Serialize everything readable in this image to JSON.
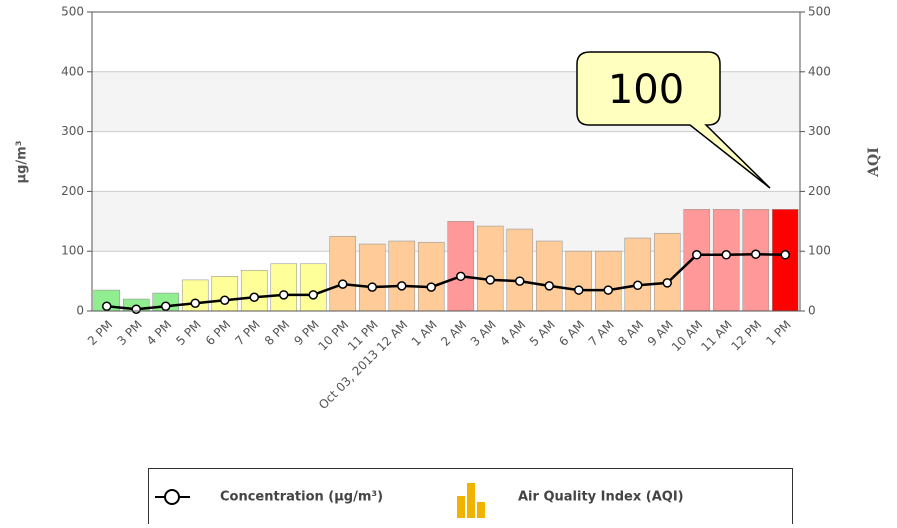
{
  "chart_data": {
    "type": "bar_line",
    "categories": [
      "2 PM",
      "3 PM",
      "4 PM",
      "5 PM",
      "6 PM",
      "7 PM",
      "8 PM",
      "9 PM",
      "10 PM",
      "11 PM",
      "Oct 03, 2013 12 AM",
      "1 AM",
      "2 AM",
      "3 AM",
      "4 AM",
      "5 AM",
      "6 AM",
      "7 AM",
      "8 AM",
      "9 AM",
      "10 AM",
      "11 AM",
      "12 PM",
      "1 PM"
    ],
    "ylabel": "µg/m³",
    "y2label": "AQI",
    "ylim": [
      0,
      500
    ],
    "yticks": [
      0,
      100,
      200,
      300,
      400,
      500
    ],
    "y2lim": [
      0,
      500
    ],
    "y2ticks": [
      0,
      100,
      200,
      300,
      400,
      500
    ],
    "grid": true,
    "series": [
      {
        "name": "Concentration (µg/m³)",
        "type": "line",
        "color": "#000000",
        "values": [
          8,
          3,
          8,
          13,
          18,
          23,
          27,
          27,
          45,
          40,
          42,
          40,
          58,
          52,
          50,
          42,
          35,
          35,
          43,
          47,
          94,
          94,
          95,
          94
        ]
      },
      {
        "name": "Air Quality Index (AQI)",
        "type": "bar",
        "axis": "y2",
        "colors": [
          "#90ee90",
          "#90ee90",
          "#90ee90",
          "#ffff99",
          "#ffff99",
          "#ffff99",
          "#ffff99",
          "#ffff99",
          "#ffcc99",
          "#ffcc99",
          "#ffcc99",
          "#ffcc99",
          "#ff9999",
          "#ffcc99",
          "#ffcc99",
          "#ffcc99",
          "#ffcc99",
          "#ffcc99",
          "#ffcc99",
          "#ffcc99",
          "#ff9999",
          "#ff9999",
          "#ff9999",
          "#ff0000"
        ],
        "values": [
          35,
          20,
          30,
          52,
          58,
          68,
          79,
          79,
          125,
          112,
          117,
          115,
          150,
          142,
          137,
          117,
          100,
          100,
          122,
          130,
          170,
          170,
          170,
          170
        ]
      }
    ],
    "annotation": {
      "text": "100"
    }
  }
}
